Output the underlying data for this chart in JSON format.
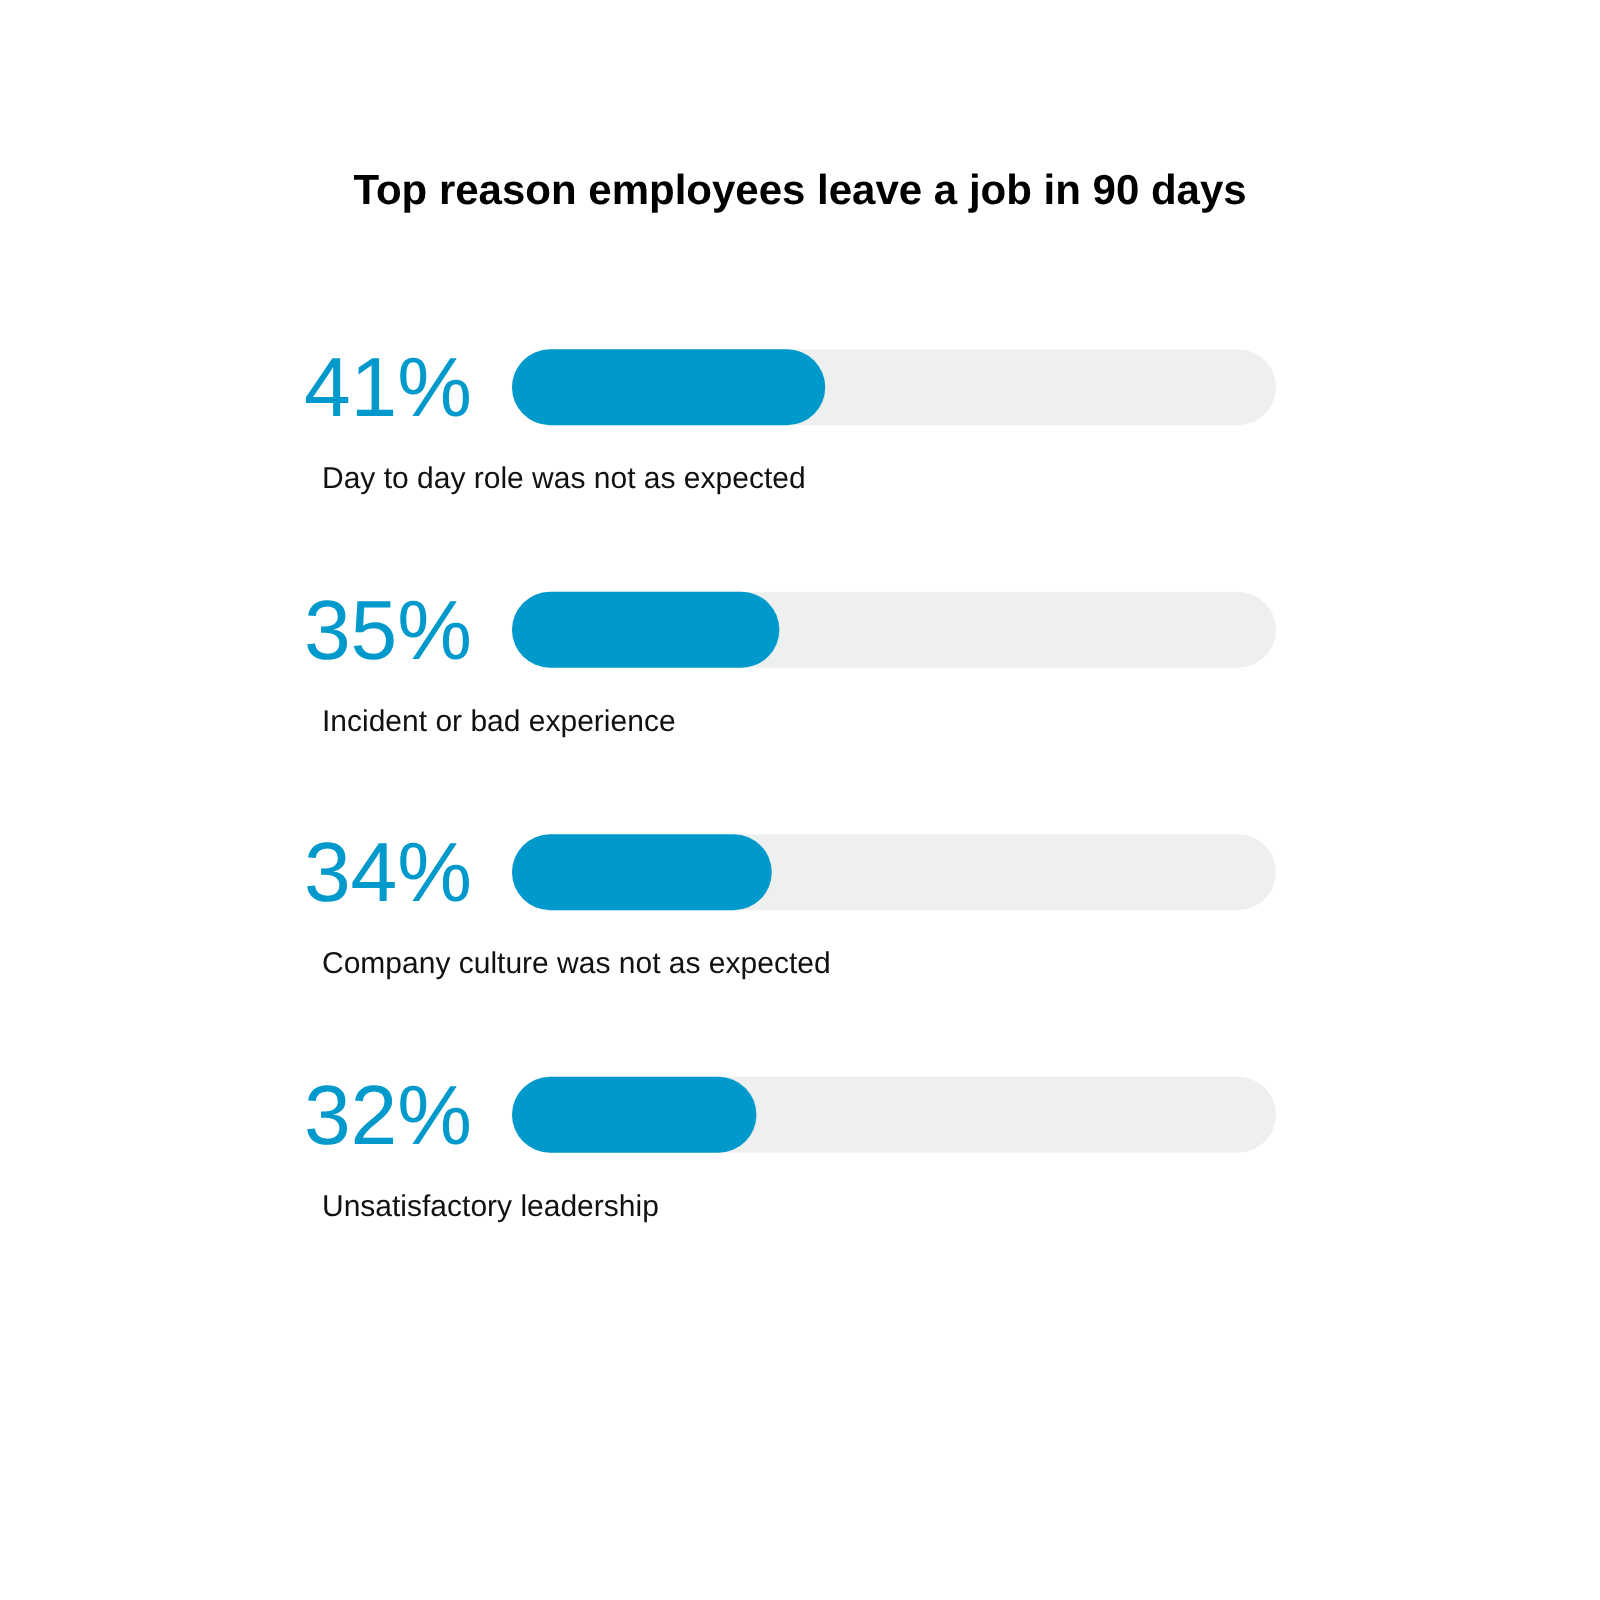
{
  "chart_data": {
    "type": "bar",
    "orientation": "horizontal",
    "title": "Top reason employees leave a job in 90 days",
    "categories": [
      "Day to day role was not as expected",
      "Incident or bad experience",
      "Company culture was not as expected",
      "Unsatisfactory leadership"
    ],
    "values": [
      41,
      35,
      34,
      32
    ],
    "value_labels": [
      "41%",
      "35%",
      "34%",
      "32%"
    ],
    "color": "#0099cc",
    "xlim": [
      0,
      100
    ],
    "tick_labels": "y"
  }
}
